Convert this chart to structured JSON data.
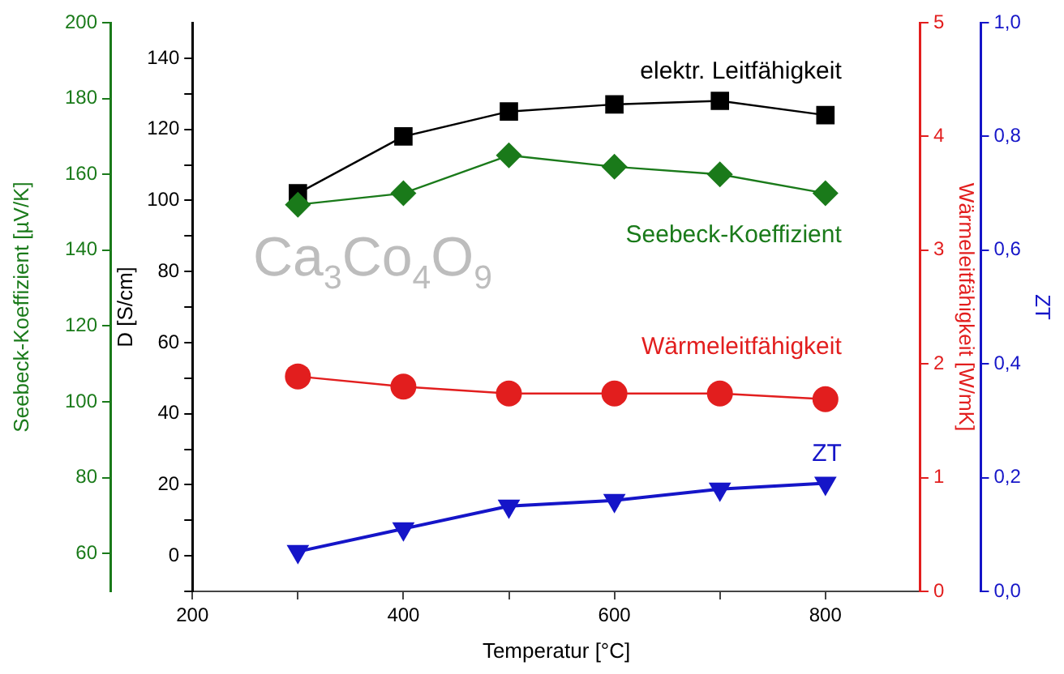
{
  "chart_data": [
    {
      "type": "line",
      "ylabel": "Seebeck-Koeffizient [µV/K]",
      "x": [
        300,
        400,
        500,
        600,
        700,
        800
      ],
      "xlim": [
        200,
        890
      ],
      "ylim": [
        50,
        200
      ],
      "yticks": [
        60,
        80,
        100,
        120,
        140,
        160,
        180,
        200
      ],
      "tick_labels": "y",
      "grid": false,
      "legend": false,
      "line_style": "solid",
      "series": [
        {
          "name": "Seebeck-Koeffizient",
          "color": "#1a7a1a",
          "marker": "diamond",
          "values": [
            152,
            155,
            165,
            162,
            160,
            155
          ]
        }
      ]
    },
    {
      "type": "line",
      "xlabel": "Temperatur [°C]",
      "ylabel": "D [S/cm]",
      "y2label": "Wärmeleitfähigkeit [W/mK]",
      "y3label": "ZT",
      "x": [
        300,
        400,
        500,
        600,
        700,
        800
      ],
      "xlim": [
        200,
        890
      ],
      "xticks": [
        200,
        {
          "value": 300,
          "label": null
        },
        400,
        {
          "value": 500,
          "label": null
        },
        600,
        {
          "value": 700,
          "label": null
        },
        800
      ],
      "ylim": [
        -10,
        150
      ],
      "yticks": [
        {
          "value": -10,
          "label": null
        },
        0,
        {
          "value": 10,
          "label": null
        },
        20,
        {
          "value": 30,
          "label": null
        },
        40,
        {
          "value": 50,
          "label": null
        },
        60,
        {
          "value": 70,
          "label": null
        },
        80,
        {
          "value": 90,
          "label": null
        },
        100,
        {
          "value": 110,
          "label": null
        },
        120,
        {
          "value": 130,
          "label": null
        },
        140
      ],
      "y2lim": [
        0,
        5
      ],
      "y2ticks": [
        0,
        1,
        2,
        3,
        4,
        5
      ],
      "y3lim": [
        0,
        1
      ],
      "y3ticks": [
        {
          "value": 0,
          "label": "0,0"
        },
        {
          "value": 0.2,
          "label": "0,2"
        },
        {
          "value": 0.4,
          "label": "0,4"
        },
        {
          "value": 0.6,
          "label": "0,6"
        },
        {
          "value": 0.8,
          "label": "0,8"
        },
        {
          "value": 1,
          "label": "1,0"
        }
      ],
      "grid": false,
      "legend": false,
      "line_style": "solid",
      "series": [
        {
          "name": "elektr. Leitfähigkeit",
          "color": "#000000",
          "marker": "square",
          "values": [
            102,
            118,
            125,
            127,
            128,
            124
          ]
        },
        {
          "name": "Wärmeleitfähigkeit",
          "color": "#e21e1e",
          "marker": "circle",
          "axis": "y2",
          "values": [
            1.89,
            1.8,
            1.74,
            1.74,
            1.74,
            1.69
          ]
        },
        {
          "name": "ZT",
          "color": "#1515c8",
          "marker": "triangle",
          "axis": "y3",
          "values": [
            0.07,
            0.11,
            0.15,
            0.16,
            0.18,
            0.19
          ]
        }
      ],
      "annotations": [
        "Ca$_{3}$Co$_{4}$O$_{9}$"
      ]
    }
  ]
}
